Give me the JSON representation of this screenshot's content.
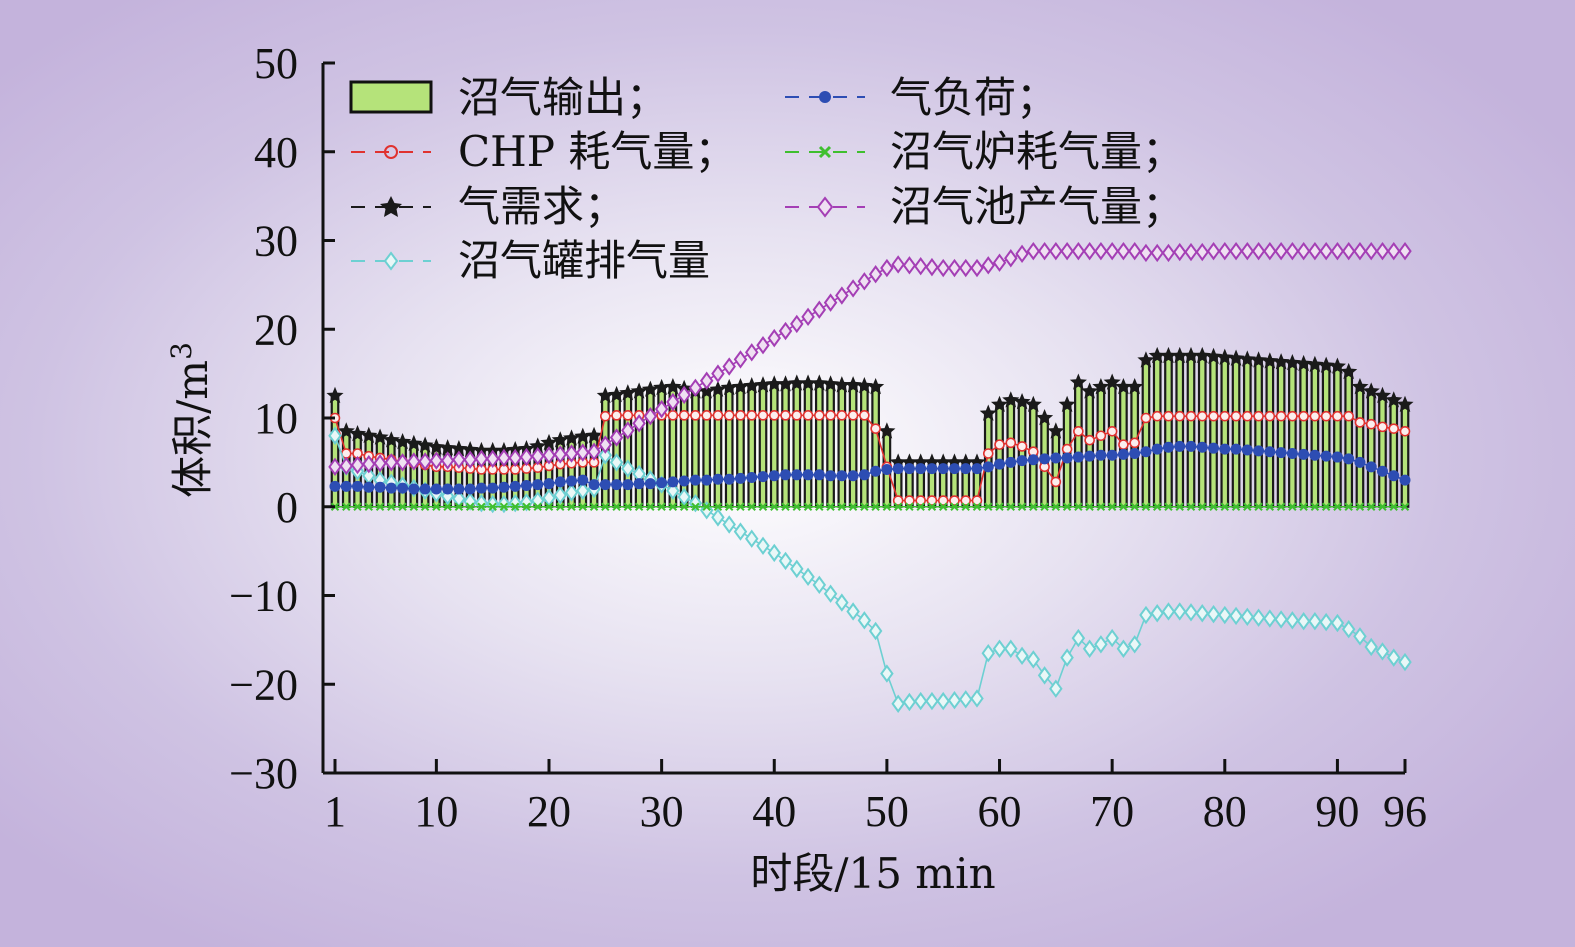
{
  "chart_data": {
    "type": "bar",
    "xlabel": "时段/15 min",
    "ylabel": "体积/m",
    "ylabel_sup": "3",
    "ylim": [
      -30,
      50
    ],
    "yticks": [
      50,
      40,
      30,
      20,
      10,
      0,
      -10,
      -20,
      -30
    ],
    "ytick_labels": [
      "50",
      "40",
      "30",
      "20",
      "10",
      "0",
      "−10",
      "−20",
      "−30"
    ],
    "xlim": [
      1,
      96
    ],
    "xticks": [
      1,
      10,
      20,
      30,
      40,
      50,
      60,
      70,
      80,
      90,
      96
    ],
    "xtick_labels": [
      "1",
      "10",
      "20",
      "30",
      "40",
      "50",
      "60",
      "70",
      "80",
      "90",
      "96"
    ],
    "grid": false,
    "legend_position": "top-left",
    "series": [
      {
        "name": "沼气输出；",
        "kind": "bar",
        "color": "#b5e37a",
        "values": [
          12.5,
          8.5,
          8.2,
          8.0,
          7.8,
          7.5,
          7.3,
          7.1,
          6.9,
          6.7,
          6.6,
          6.5,
          6.4,
          6.3,
          6.3,
          6.3,
          6.4,
          6.5,
          6.8,
          7.2,
          7.5,
          7.7,
          7.9,
          8.0,
          12.5,
          12.6,
          12.8,
          13.0,
          13.2,
          13.4,
          13.5,
          13.3,
          13.0,
          13.0,
          13.2,
          13.4,
          13.5,
          13.6,
          13.7,
          13.8,
          13.8,
          13.9,
          13.9,
          13.9,
          13.8,
          13.7,
          13.7,
          13.6,
          13.5,
          8.5,
          5.0,
          5.0,
          5.0,
          5.0,
          5.0,
          5.0,
          5.0,
          5.0,
          10.5,
          11.5,
          12.0,
          11.8,
          11.5,
          10.0,
          8.5,
          11.5,
          14.0,
          13.0,
          13.5,
          14.0,
          13.5,
          13.5,
          16.5,
          17.0,
          17.0,
          17.0,
          17.0,
          17.0,
          16.9,
          16.8,
          16.7,
          16.6,
          16.5,
          16.4,
          16.3,
          16.2,
          16.1,
          16.0,
          15.9,
          15.8,
          15.2,
          13.5,
          13.0,
          12.5,
          12.0,
          11.5
        ]
      },
      {
        "name": "CHP 耗气量；",
        "kind": "line",
        "marker": "circle",
        "color": "#e0322f",
        "values": [
          10.0,
          6.0,
          6.0,
          5.7,
          5.5,
          5.3,
          5.1,
          4.9,
          4.7,
          4.5,
          4.5,
          4.4,
          4.3,
          4.2,
          4.2,
          4.2,
          4.2,
          4.3,
          4.4,
          4.6,
          4.8,
          4.9,
          5.0,
          5.0,
          10.2,
          10.3,
          10.3,
          10.3,
          10.3,
          10.3,
          10.3,
          10.3,
          10.3,
          10.3,
          10.3,
          10.3,
          10.3,
          10.3,
          10.3,
          10.3,
          10.3,
          10.3,
          10.3,
          10.3,
          10.3,
          10.3,
          10.3,
          10.3,
          8.8,
          4.5,
          0.7,
          0.7,
          0.7,
          0.7,
          0.7,
          0.7,
          0.7,
          0.7,
          6.0,
          7.0,
          7.2,
          6.8,
          6.2,
          4.5,
          2.8,
          6.5,
          8.5,
          7.5,
          8.0,
          8.5,
          7.0,
          7.2,
          10.0,
          10.2,
          10.2,
          10.2,
          10.2,
          10.2,
          10.2,
          10.2,
          10.2,
          10.2,
          10.2,
          10.2,
          10.2,
          10.2,
          10.2,
          10.2,
          10.2,
          10.2,
          10.2,
          9.5,
          9.3,
          9.0,
          8.8,
          8.5
        ]
      },
      {
        "name": "气需求；",
        "kind": "line",
        "marker": "star",
        "color": "#1a1a1a",
        "values": [
          12.5,
          8.5,
          8.2,
          8.0,
          7.8,
          7.5,
          7.3,
          7.1,
          6.9,
          6.7,
          6.6,
          6.5,
          6.4,
          6.3,
          6.3,
          6.3,
          6.4,
          6.5,
          6.8,
          7.2,
          7.5,
          7.7,
          7.9,
          8.0,
          12.5,
          12.6,
          12.8,
          13.0,
          13.2,
          13.4,
          13.5,
          13.3,
          13.0,
          13.0,
          13.2,
          13.4,
          13.5,
          13.6,
          13.7,
          13.8,
          13.8,
          13.9,
          13.9,
          13.9,
          13.8,
          13.7,
          13.7,
          13.6,
          13.5,
          8.5,
          5.0,
          5.0,
          5.0,
          5.0,
          5.0,
          5.0,
          5.0,
          5.0,
          10.5,
          11.5,
          12.0,
          11.8,
          11.5,
          10.0,
          8.5,
          11.5,
          14.0,
          13.0,
          13.5,
          14.0,
          13.5,
          13.5,
          16.5,
          17.0,
          17.0,
          17.0,
          17.0,
          17.0,
          16.9,
          16.8,
          16.7,
          16.6,
          16.5,
          16.4,
          16.3,
          16.2,
          16.1,
          16.0,
          15.9,
          15.8,
          15.2,
          13.5,
          13.0,
          12.5,
          12.0,
          11.5
        ]
      },
      {
        "name": "沼气罐排气量",
        "kind": "line",
        "marker": "diamond",
        "color": "#6dd0d2",
        "values": [
          8.0,
          4.5,
          4.0,
          3.5,
          3.0,
          2.7,
          2.4,
          2.1,
          1.8,
          1.5,
          1.2,
          0.9,
          0.6,
          0.4,
          0.3,
          0.3,
          0.4,
          0.5,
          0.7,
          1.0,
          1.3,
          1.6,
          1.8,
          2.0,
          5.8,
          5.0,
          4.3,
          3.7,
          3.1,
          2.5,
          1.8,
          1.1,
          0.4,
          -0.4,
          -1.2,
          -2.0,
          -2.8,
          -3.6,
          -4.4,
          -5.2,
          -6.1,
          -7.0,
          -7.9,
          -8.8,
          -9.8,
          -10.8,
          -11.8,
          -12.8,
          -14.0,
          -18.8,
          -22.2,
          -22.0,
          -21.9,
          -21.9,
          -21.9,
          -21.8,
          -21.7,
          -21.6,
          -16.5,
          -16.0,
          -16.0,
          -16.8,
          -17.2,
          -19.0,
          -20.5,
          -17.0,
          -14.8,
          -16.0,
          -15.5,
          -14.8,
          -16.0,
          -15.5,
          -12.2,
          -12.0,
          -11.8,
          -11.8,
          -11.9,
          -12.0,
          -12.1,
          -12.2,
          -12.3,
          -12.4,
          -12.5,
          -12.6,
          -12.7,
          -12.8,
          -12.9,
          -12.9,
          -13.0,
          -13.1,
          -13.8,
          -14.6,
          -15.8,
          -16.3,
          -17.0,
          -17.5
        ]
      },
      {
        "name": "气负荷；",
        "kind": "line",
        "marker": "circle-filled",
        "color": "#2d4db3",
        "values": [
          2.3,
          2.3,
          2.3,
          2.2,
          2.2,
          2.1,
          2.1,
          2.0,
          2.0,
          2.0,
          2.0,
          2.0,
          2.0,
          2.1,
          2.1,
          2.2,
          2.3,
          2.4,
          2.5,
          2.6,
          2.8,
          2.9,
          3.0,
          2.5,
          2.5,
          2.5,
          2.5,
          2.6,
          2.6,
          2.7,
          2.8,
          2.9,
          3.0,
          3.0,
          3.1,
          3.1,
          3.2,
          3.3,
          3.4,
          3.5,
          3.6,
          3.6,
          3.6,
          3.6,
          3.5,
          3.5,
          3.5,
          3.6,
          4.0,
          4.2,
          4.3,
          4.3,
          4.3,
          4.3,
          4.3,
          4.3,
          4.3,
          4.3,
          4.5,
          4.8,
          5.0,
          5.2,
          5.3,
          5.4,
          5.5,
          5.5,
          5.6,
          5.7,
          5.8,
          5.8,
          5.9,
          6.0,
          6.2,
          6.5,
          6.7,
          6.8,
          6.8,
          6.7,
          6.6,
          6.5,
          6.5,
          6.4,
          6.3,
          6.2,
          6.1,
          6.0,
          5.9,
          5.8,
          5.7,
          5.6,
          5.4,
          5.0,
          4.5,
          4.0,
          3.5,
          3.0
        ]
      },
      {
        "name": "沼气炉耗气量；",
        "kind": "line",
        "marker": "x",
        "color": "#3fbf2f",
        "values": [
          0,
          0,
          0,
          0,
          0,
          0,
          0,
          0,
          0,
          0,
          0,
          0,
          0,
          0,
          0,
          0,
          0,
          0,
          0,
          0,
          0,
          0,
          0,
          0,
          0,
          0,
          0,
          0,
          0,
          0,
          0,
          0,
          0,
          0,
          0,
          0,
          0,
          0,
          0,
          0,
          0,
          0,
          0,
          0,
          0,
          0,
          0,
          0,
          0,
          0,
          0,
          0,
          0,
          0,
          0,
          0,
          0,
          0,
          0,
          0,
          0,
          0,
          0,
          0,
          0,
          0,
          0,
          0,
          0,
          0,
          0,
          0,
          0,
          0,
          0,
          0,
          0,
          0,
          0,
          0,
          0,
          0,
          0,
          0,
          0,
          0,
          0,
          0,
          0,
          0,
          0,
          0,
          0,
          0,
          0,
          0
        ]
      },
      {
        "name": "沼气池产气量；",
        "kind": "line",
        "marker": "diamond",
        "color": "#a43fb5",
        "values": [
          4.5,
          4.6,
          4.7,
          4.8,
          4.9,
          5.0,
          5.0,
          5.1,
          5.1,
          5.2,
          5.2,
          5.3,
          5.3,
          5.4,
          5.4,
          5.5,
          5.5,
          5.6,
          5.7,
          5.8,
          5.9,
          6.0,
          6.1,
          6.2,
          7.0,
          7.8,
          8.6,
          9.4,
          10.2,
          11.0,
          11.8,
          12.6,
          13.4,
          14.2,
          15.0,
          15.8,
          16.6,
          17.4,
          18.2,
          19.0,
          19.8,
          20.6,
          21.4,
          22.2,
          23.0,
          23.8,
          24.6,
          25.4,
          26.2,
          26.9,
          27.3,
          27.2,
          27.1,
          27.0,
          26.9,
          26.9,
          26.9,
          26.9,
          27.2,
          27.5,
          28.0,
          28.5,
          28.8,
          28.8,
          28.8,
          28.8,
          28.8,
          28.8,
          28.8,
          28.8,
          28.8,
          28.8,
          28.6,
          28.6,
          28.6,
          28.7,
          28.7,
          28.7,
          28.8,
          28.8,
          28.8,
          28.8,
          28.8,
          28.8,
          28.8,
          28.8,
          28.8,
          28.8,
          28.8,
          28.8,
          28.8,
          28.8,
          28.8,
          28.8,
          28.8,
          28.8
        ]
      }
    ]
  }
}
